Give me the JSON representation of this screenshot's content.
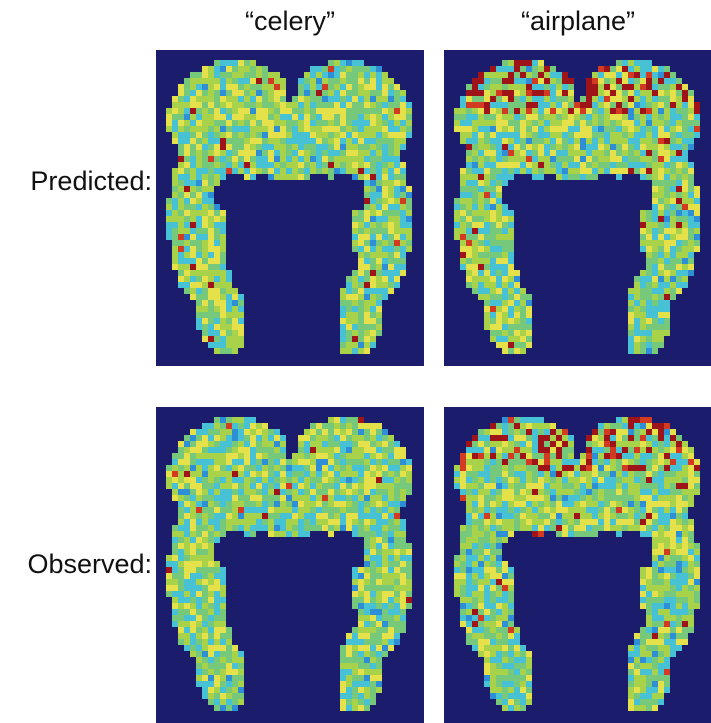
{
  "columns": [
    "“celery”",
    "“airplane”"
  ],
  "rows": [
    "Predicted:",
    "Observed:"
  ],
  "colors": {
    "background": "#1b1c6b",
    "colormap": [
      "#1f4fb5",
      "#2f8fd6",
      "#47c2d4",
      "#76c87a",
      "#a8d24a",
      "#e4e14a",
      "#f2a23a",
      "#d23a22",
      "#9e1418"
    ]
  },
  "panels": [
    {
      "row": "Predicted:",
      "column": "“celery”",
      "seed": 11,
      "hot_bias": 0.18
    },
    {
      "row": "Predicted:",
      "column": "“airplane”",
      "seed": 23,
      "hot_bias": 0.32
    },
    {
      "row": "Observed:",
      "column": "“celery”",
      "seed": 37,
      "hot_bias": 0.12
    },
    {
      "row": "Observed:",
      "column": "“airplane”",
      "seed": 53,
      "hot_bias": 0.3
    }
  ]
}
